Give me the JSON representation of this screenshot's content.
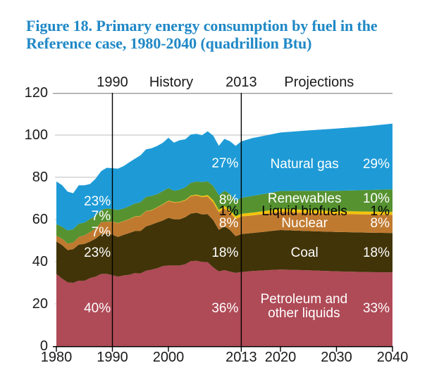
{
  "title": {
    "line1": "Figure 18. Primary energy consumption by fuel in the",
    "line2": "Reference case, 1980-2040 (quadrillion Btu)",
    "color": "#2088c6"
  },
  "chart_data": {
    "type": "area",
    "stacked": true,
    "title": "Figure 18. Primary energy consumption by fuel in the Reference case, 1980-2040 (quadrillion Btu)",
    "ylabel": "quadrillion Btu",
    "xlim": [
      1980,
      2040
    ],
    "ylim": [
      0,
      120
    ],
    "y_ticks": [
      0,
      20,
      40,
      60,
      80,
      100,
      120
    ],
    "x_ticks": [
      1980,
      1990,
      2000,
      2013,
      2020,
      2030,
      2040
    ],
    "grid": "horizontal",
    "era_dividers": [
      1990,
      2013
    ],
    "era_labels": [
      {
        "text": "1990",
        "year": 1990
      },
      {
        "text": "History",
        "year": 2000.5
      },
      {
        "text": "2013",
        "year": 2013
      },
      {
        "text": "Projections",
        "year": 2026.9
      }
    ],
    "years": [
      1980,
      1981,
      1982,
      1983,
      1984,
      1985,
      1986,
      1987,
      1988,
      1989,
      1990,
      1991,
      1992,
      1993,
      1994,
      1995,
      1996,
      1997,
      1998,
      1999,
      2000,
      2001,
      2002,
      2003,
      2004,
      2005,
      2006,
      2007,
      2008,
      2009,
      2010,
      2011,
      2012,
      2013,
      2015,
      2020,
      2025,
      2030,
      2035,
      2040
    ],
    "series": [
      {
        "name": "Petroleum and other liquids",
        "color": "#af4a57",
        "values": [
          34.2,
          32.0,
          30.2,
          30.0,
          31.0,
          30.9,
          32.2,
          32.9,
          34.2,
          34.2,
          33.6,
          32.9,
          33.5,
          33.8,
          34.6,
          34.4,
          35.7,
          36.2,
          36.9,
          37.9,
          38.2,
          38.2,
          38.2,
          38.8,
          40.3,
          40.4,
          39.9,
          39.8,
          37.3,
          35.4,
          36.0,
          35.3,
          34.7,
          35.1,
          35.6,
          36.3,
          35.9,
          35.4,
          35.1,
          34.9
        ]
      },
      {
        "name": "Coal",
        "color": "#413408",
        "values": [
          15.4,
          15.9,
          15.3,
          15.9,
          17.1,
          17.5,
          17.3,
          18.0,
          18.8,
          19.1,
          19.2,
          18.8,
          19.2,
          19.8,
          19.9,
          20.1,
          21.0,
          21.4,
          21.7,
          21.6,
          22.6,
          21.9,
          21.9,
          22.3,
          22.5,
          22.8,
          22.5,
          22.7,
          22.4,
          19.7,
          20.8,
          19.7,
          17.4,
          18.0,
          18.0,
          18.7,
          18.6,
          18.7,
          18.7,
          18.7
        ]
      },
      {
        "name": "Nuclear",
        "color": "#c07a30",
        "values": [
          2.7,
          3.0,
          3.1,
          3.2,
          3.6,
          4.1,
          4.5,
          4.9,
          5.7,
          5.6,
          6.1,
          6.5,
          6.5,
          6.5,
          6.8,
          7.1,
          7.2,
          6.7,
          7.1,
          7.6,
          7.9,
          8.0,
          8.1,
          7.9,
          8.2,
          8.2,
          8.2,
          8.4,
          8.4,
          8.3,
          8.4,
          8.3,
          8.1,
          8.3,
          8.3,
          8.6,
          8.6,
          8.5,
          8.6,
          8.6
        ]
      },
      {
        "name": "Liquid biofuels",
        "color": "#f2c40d",
        "values": [
          0,
          0,
          0,
          0,
          0,
          0,
          0,
          0,
          0,
          0,
          0.1,
          0.1,
          0.1,
          0.1,
          0.15,
          0.15,
          0.1,
          0.15,
          0.15,
          0.15,
          0.2,
          0.2,
          0.25,
          0.3,
          0.35,
          0.4,
          0.5,
          0.7,
          1.0,
          1.1,
          1.2,
          1.25,
          1.25,
          1.3,
          1.35,
          1.4,
          1.4,
          1.4,
          1.4,
          1.4
        ]
      },
      {
        "name": "Renewables",
        "color": "#569230",
        "values": [
          5.5,
          5.7,
          6.2,
          6.3,
          6.3,
          6.0,
          6.2,
          5.9,
          5.8,
          6.3,
          6.0,
          6.2,
          5.9,
          6.1,
          6.1,
          6.4,
          6.7,
          6.7,
          6.2,
          6.2,
          6.0,
          5.3,
          5.6,
          5.9,
          6.0,
          6.2,
          6.6,
          6.5,
          6.8,
          7.0,
          7.2,
          7.6,
          7.3,
          7.6,
          7.9,
          8.5,
          9.1,
          9.6,
          10.1,
          10.7
        ]
      },
      {
        "name": "Natural gas",
        "color": "#1e9bd7",
        "values": [
          20.2,
          19.7,
          18.4,
          17.0,
          18.2,
          17.7,
          16.6,
          17.6,
          18.4,
          19.3,
          19.3,
          19.6,
          20.1,
          20.8,
          21.2,
          22.2,
          22.5,
          22.6,
          22.8,
          22.9,
          23.8,
          22.8,
          23.5,
          22.8,
          22.9,
          22.6,
          22.2,
          23.7,
          23.8,
          23.4,
          24.6,
          24.9,
          26.1,
          26.7,
          27.4,
          27.7,
          28.6,
          29.5,
          30.2,
          31.1
        ]
      }
    ],
    "shares": {
      "1990": {
        "Natural gas": "23%",
        "Renewables": "7%",
        "Nuclear": "7%",
        "Coal": "23%",
        "Petroleum and other liquids": "40%"
      },
      "2013": {
        "Natural gas": "27%",
        "Renewables": "8%",
        "Liquid biofuels": "1%",
        "Nuclear": "8%",
        "Coal": "18%",
        "Petroleum and other liquids": "36%"
      },
      "2040": {
        "Natural gas": "29%",
        "Renewables": "10%",
        "Liquid biofuels": "1%",
        "Nuclear": "8%",
        "Coal": "18%",
        "Petroleum and other liquids": "33%"
      }
    },
    "annotations": [
      {
        "text": "23%",
        "year": 1989.7,
        "q": 68.3,
        "align": "right",
        "color": "#ffffff"
      },
      {
        "text": "7%",
        "year": 1989.7,
        "q": 61.3,
        "align": "right",
        "color": "#ffffff"
      },
      {
        "text": "7%",
        "year": 1989.7,
        "q": 53.7,
        "align": "right",
        "color": "#ffffff"
      },
      {
        "text": "23%",
        "year": 1989.7,
        "q": 44.0,
        "align": "right",
        "color": "#ffffff"
      },
      {
        "text": "40%",
        "year": 1989.7,
        "q": 17.7,
        "align": "right",
        "color": "#ffffff"
      },
      {
        "text": "27%",
        "year": 2012.5,
        "q": 86.3,
        "align": "right",
        "color": "#ffffff"
      },
      {
        "text": "8%",
        "year": 2012.5,
        "q": 69.0,
        "align": "right",
        "color": "#ffffff"
      },
      {
        "text": "1%",
        "year": 2012.5,
        "q": 63.7,
        "align": "right",
        "color": "#000000"
      },
      {
        "text": "8%",
        "year": 2012.5,
        "q": 58.0,
        "align": "right",
        "color": "#ffffff"
      },
      {
        "text": "18%",
        "year": 2012.5,
        "q": 44.0,
        "align": "right",
        "color": "#ffffff"
      },
      {
        "text": "36%",
        "year": 2012.5,
        "q": 17.7,
        "align": "right",
        "color": "#ffffff"
      },
      {
        "text": "Natural gas",
        "year": 2024.3,
        "q": 86.0,
        "align": "center",
        "color": "#ffffff"
      },
      {
        "text": "Renewables",
        "year": 2024.3,
        "q": 69.7,
        "align": "center",
        "color": "#ffffff"
      },
      {
        "text": "Liquid biofuels",
        "year": 2024.3,
        "q": 63.7,
        "align": "center",
        "color": "#000000"
      },
      {
        "text": "Nuclear",
        "year": 2024.3,
        "q": 58.0,
        "align": "center",
        "color": "#ffffff"
      },
      {
        "text": "Coal",
        "year": 2024.3,
        "q": 44.0,
        "align": "center",
        "color": "#ffffff"
      },
      {
        "text": "Petroleum and\nother liquids",
        "year": 2024.2,
        "q": 18.7,
        "align": "center",
        "color": "#ffffff"
      },
      {
        "text": "29%",
        "year": 2039.5,
        "q": 86.0,
        "align": "right",
        "color": "#ffffff"
      },
      {
        "text": "10%",
        "year": 2039.5,
        "q": 69.7,
        "align": "right",
        "color": "#ffffff"
      },
      {
        "text": "1%",
        "year": 2039.5,
        "q": 63.7,
        "align": "right",
        "color": "#000000"
      },
      {
        "text": "8%",
        "year": 2039.5,
        "q": 58.0,
        "align": "right",
        "color": "#ffffff"
      },
      {
        "text": "18%",
        "year": 2039.5,
        "q": 44.0,
        "align": "right",
        "color": "#ffffff"
      },
      {
        "text": "33%",
        "year": 2039.5,
        "q": 17.7,
        "align": "right",
        "color": "#ffffff"
      }
    ]
  }
}
